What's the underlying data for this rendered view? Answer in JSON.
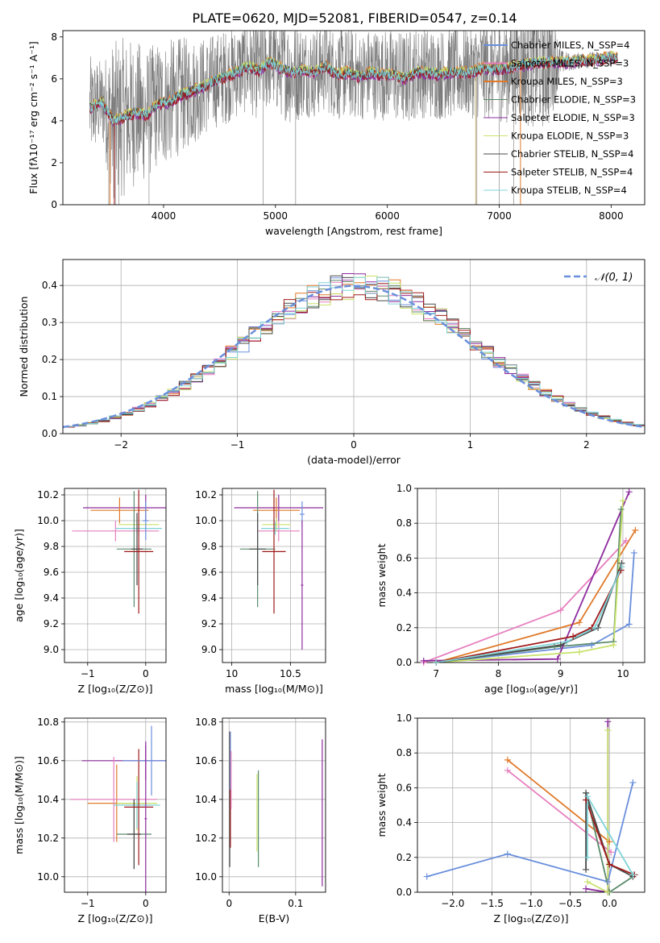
{
  "figure": {
    "title": "PLATE=0620, MJD=52081, FIBERID=0547, z=0.14"
  },
  "colors": {
    "blue": "#6a8fdc",
    "orange": "#e07a2a",
    "green": "#5a8a6a",
    "purple": "#8e2c9e",
    "yellowgreen": "#c8e26a",
    "darkgray": "#4a4a4a",
    "darkred": "#a01a1a",
    "cyan": "#7fd4d8",
    "pink": "#e77fbf",
    "gray": "#808080"
  },
  "chart_data": [
    {
      "id": "spectrum",
      "type": "line",
      "xlabel": "wavelength [Angstrom, rest frame]",
      "ylabel": "Flux [fλ10⁻¹⁷ erg cm⁻² s⁻¹ A⁻¹]",
      "xlim": [
        3100,
        8300
      ],
      "ylim": [
        0,
        8.3
      ],
      "xticks": [
        4000,
        5000,
        6000,
        7000,
        8000
      ],
      "yticks": [
        0,
        2,
        4,
        6,
        8
      ],
      "grid": false,
      "legend_position": "upper-right",
      "data_series": {
        "name": "",
        "x": [
          3340,
          3450,
          3550,
          3650,
          3750,
          3850,
          3950,
          4050,
          4150,
          4250,
          4350,
          4450,
          4550,
          4650,
          4750,
          4850,
          4950,
          5050,
          5150,
          5250,
          5350,
          5450,
          5550,
          5650,
          5750,
          5850,
          5950,
          6050,
          6150,
          6250,
          6350,
          6450,
          6550,
          6650,
          6750,
          6850,
          6950,
          7050,
          7150,
          7250,
          7350,
          7450,
          7550,
          7650,
          7750,
          7850,
          7950,
          8050
        ],
        "y": [
          4.6,
          4.9,
          4.0,
          4.2,
          4.4,
          4.3,
          4.8,
          4.9,
          5.2,
          5.4,
          5.6,
          5.9,
          6.1,
          6.3,
          6.6,
          6.4,
          6.8,
          6.5,
          6.3,
          6.4,
          6.3,
          6.6,
          6.2,
          6.3,
          6.1,
          6.3,
          6.2,
          6.2,
          6.0,
          6.3,
          6.3,
          6.2,
          6.3,
          6.3,
          6.3,
          6.5,
          6.5,
          6.5,
          6.6,
          6.7,
          6.8,
          6.8,
          6.8,
          6.8,
          6.9,
          6.9,
          7.0,
          7.0
        ],
        "noise": [
          2.5,
          2.0,
          3.8,
          3.8,
          3.5,
          3.2,
          3.0,
          3.0,
          2.8,
          2.6,
          2.4,
          2.3,
          2.3,
          2.2,
          2.2,
          2.4,
          2.2,
          2.3,
          2.6,
          2.2,
          2.2,
          2.2,
          2.2,
          2.2,
          2.1,
          2.2,
          2.2,
          2.2,
          2.3,
          2.2,
          2.2,
          2.2,
          2.2,
          2.2,
          2.2,
          2.4,
          2.5,
          2.6,
          2.8,
          3.0,
          3.2,
          3.2,
          0.6,
          0.4,
          0.4,
          0.4,
          0.4,
          0.3
        ]
      },
      "series": [
        {
          "name": "Chabrier MILES, N_SSP=4",
          "color": "#6a8fdc",
          "offset": 0.05
        },
        {
          "name": "Salpeter MILES, N_SSP=3",
          "color": "#e77fbf",
          "offset": -0.05
        },
        {
          "name": "Kroupa MILES, N_SSP=3",
          "color": "#e07a2a",
          "offset": 0.1
        },
        {
          "name": "Chabrier ELODIE, N_SSP=3",
          "color": "#5a8a6a",
          "offset": 0.0
        },
        {
          "name": "Salpeter ELODIE, N_SSP=3",
          "color": "#8e2c9e",
          "offset": -0.1
        },
        {
          "name": "Kroupa ELODIE, N_SSP=3",
          "color": "#c8e26a",
          "offset": 0.08
        },
        {
          "name": "Chabrier STELIB, N_SSP=4",
          "color": "#4a4a4a",
          "offset": 0.02
        },
        {
          "name": "Salpeter STELIB, N_SSP=4",
          "color": "#a01a1a",
          "offset": -0.08
        },
        {
          "name": "Kroupa STELIB, N_SSP=4",
          "color": "#7fd4d8",
          "offset": 0.0
        }
      ]
    },
    {
      "id": "residuals",
      "type": "line",
      "xlabel": "(data-model)/error",
      "ylabel": "Normed distribution",
      "xlim": [
        -2.5,
        2.5
      ],
      "ylim": [
        0,
        0.47
      ],
      "xticks": [
        -2,
        -1,
        0,
        1,
        2
      ],
      "yticks": [
        0.0,
        0.1,
        0.2,
        0.3,
        0.4
      ],
      "grid": true,
      "legend_position": "upper-right",
      "gaussian_label": "𝒩(0, 1)",
      "gaussian_color": "#6a8fdc",
      "histogram_bin_width": 0.1,
      "histogram_colors": [
        "#6a8fdc",
        "#e77fbf",
        "#e07a2a",
        "#5a8a6a",
        "#8e2c9e",
        "#c8e26a",
        "#4a4a4a",
        "#a01a1a",
        "#7fd4d8"
      ]
    },
    {
      "id": "age-vs-Z",
      "type": "scatter",
      "xlabel": "Z [log₁₀(Z/Z⊙)]",
      "ylabel": "age  [log₁₀(age/yr)]",
      "xlim": [
        -1.4,
        0.35
      ],
      "ylim": [
        8.9,
        10.25
      ],
      "xticks": [
        -1,
        0
      ],
      "yticks": [
        9.0,
        9.2,
        9.4,
        9.6,
        9.8,
        10.0,
        10.2
      ],
      "grid": true,
      "errorbars": [
        {
          "x": 0.0,
          "y": 10.1,
          "xerr": 1.08,
          "yerr": 0.1,
          "color": "#8e2c9e"
        },
        {
          "x": -0.45,
          "y": 10.08,
          "xerr": 0.5,
          "yerr": 0.1,
          "color": "#e07a2a"
        },
        {
          "x": -0.52,
          "y": 9.92,
          "xerr": 0.75,
          "yerr": 0.08,
          "color": "#e77fbf"
        },
        {
          "x": -0.12,
          "y": 9.97,
          "xerr": 0.35,
          "yerr": 0.05,
          "color": "#c8e26a"
        },
        {
          "x": -0.12,
          "y": 9.94,
          "xerr": 0.4,
          "yerr": 0.05,
          "color": "#7fd4d8"
        },
        {
          "x": -0.2,
          "y": 9.78,
          "xerr": 0.3,
          "yerr": 0.45,
          "color": "#5a8a6a"
        },
        {
          "x": -0.15,
          "y": 9.78,
          "xerr": 0.1,
          "yerr": 0.28,
          "color": "#4a4a4a"
        },
        {
          "x": -0.12,
          "y": 9.76,
          "xerr": 0.25,
          "yerr": 0.48,
          "color": "#a01a1a"
        },
        {
          "x": 0.0,
          "y": 10.0,
          "xerr": 0.05,
          "yerr": 0.15,
          "color": "#6a8fdc"
        }
      ]
    },
    {
      "id": "age-vs-mass",
      "type": "scatter",
      "xlabel": "mass [log₁₀(M/M⊙)]",
      "ylabel": "",
      "xlim": [
        9.92,
        10.8
      ],
      "ylim": [
        8.9,
        10.25
      ],
      "xticks": [
        10.0,
        10.5
      ],
      "yticks": [
        9.0,
        9.2,
        9.4,
        9.6,
        9.8,
        10.0,
        10.2
      ],
      "grid": true,
      "errorbars": [
        {
          "x": 10.4,
          "y": 10.1,
          "xerr": 0.38,
          "yerr": 0.1,
          "color": "#8e2c9e"
        },
        {
          "x": 10.38,
          "y": 10.08,
          "xerr": 0.2,
          "yerr": 0.1,
          "color": "#e07a2a"
        },
        {
          "x": 10.4,
          "y": 9.92,
          "xerr": 0.18,
          "yerr": 0.08,
          "color": "#e77fbf"
        },
        {
          "x": 10.38,
          "y": 9.97,
          "xerr": 0.12,
          "yerr": 0.05,
          "color": "#c8e26a"
        },
        {
          "x": 10.37,
          "y": 9.94,
          "xerr": 0.12,
          "yerr": 0.05,
          "color": "#7fd4d8"
        },
        {
          "x": 10.22,
          "y": 9.78,
          "xerr": 0.15,
          "yerr": 0.45,
          "color": "#5a8a6a"
        },
        {
          "x": 10.22,
          "y": 9.78,
          "xerr": 0.07,
          "yerr": 0.28,
          "color": "#4a4a4a"
        },
        {
          "x": 10.36,
          "y": 9.76,
          "xerr": 0.1,
          "yerr": 0.48,
          "color": "#a01a1a"
        },
        {
          "x": 10.6,
          "y": 10.05,
          "xerr": 0.02,
          "yerr": 0.1,
          "color": "#6a8fdc"
        },
        {
          "x": 10.6,
          "y": 9.5,
          "xerr": 0.01,
          "yerr": 0.5,
          "color": "#8e2c9e"
        }
      ]
    },
    {
      "id": "mass-weight-vs-age",
      "type": "line",
      "xlabel": "age  [log₁₀(age/yr)]",
      "ylabel": "mass weight",
      "xlim": [
        6.7,
        10.35
      ],
      "ylim": [
        0,
        1
      ],
      "xticks": [
        7,
        8,
        9,
        10
      ],
      "yticks": [
        0.0,
        0.2,
        0.4,
        0.6,
        0.8,
        1.0
      ],
      "grid": true,
      "lines": [
        {
          "color": "#6a8fdc",
          "x": [
            7.0,
            9.5,
            10.1,
            10.18
          ],
          "y": [
            0.0,
            0.1,
            0.22,
            0.63
          ]
        },
        {
          "color": "#e77fbf",
          "x": [
            6.8,
            9.0,
            10.05
          ],
          "y": [
            0.0,
            0.3,
            0.7
          ]
        },
        {
          "color": "#e07a2a",
          "x": [
            7.0,
            9.3,
            10.2
          ],
          "y": [
            0.0,
            0.23,
            0.76
          ]
        },
        {
          "color": "#5a8a6a",
          "x": [
            7.0,
            8.9,
            9.85,
            9.97
          ],
          "y": [
            0.0,
            0.09,
            0.12,
            0.88
          ]
        },
        {
          "color": "#8e2c9e",
          "x": [
            6.8,
            8.95,
            10.1
          ],
          "y": [
            0.01,
            0.02,
            0.98
          ]
        },
        {
          "color": "#c8e26a",
          "x": [
            7.0,
            9.3,
            9.85,
            10.0
          ],
          "y": [
            0.0,
            0.06,
            0.1,
            0.93
          ]
        },
        {
          "color": "#4a4a4a",
          "x": [
            7.0,
            9.0,
            9.6,
            9.98
          ],
          "y": [
            0.0,
            0.1,
            0.2,
            0.57
          ]
        },
        {
          "color": "#a01a1a",
          "x": [
            7.0,
            9.2,
            9.5,
            9.97
          ],
          "y": [
            0.0,
            0.15,
            0.2,
            0.53
          ]
        },
        {
          "color": "#7fd4d8",
          "x": [
            7.0,
            9.1,
            9.55,
            9.98
          ],
          "y": [
            0.0,
            0.12,
            0.2,
            0.55
          ]
        }
      ]
    },
    {
      "id": "mass-vs-Z",
      "type": "scatter",
      "xlabel": "Z [log₁₀(Z/Z⊙)]",
      "ylabel": "mass [log₁₀(M/M⊙)]",
      "xlim": [
        -1.4,
        0.35
      ],
      "ylim": [
        9.92,
        10.82
      ],
      "xticks": [
        -1,
        0
      ],
      "yticks": [
        10.0,
        10.2,
        10.4,
        10.6,
        10.8
      ],
      "grid": true,
      "errorbars": [
        {
          "x": 0.0,
          "y": 10.6,
          "xerr": 1.1,
          "yerr": 0.1,
          "color": "#8e2c9e"
        },
        {
          "x": -0.5,
          "y": 10.38,
          "xerr": 0.5,
          "yerr": 0.2,
          "color": "#e07a2a"
        },
        {
          "x": -0.55,
          "y": 10.4,
          "xerr": 0.75,
          "yerr": 0.22,
          "color": "#e77fbf"
        },
        {
          "x": -0.15,
          "y": 10.38,
          "xerr": 0.35,
          "yerr": 0.14,
          "color": "#c8e26a"
        },
        {
          "x": -0.15,
          "y": 10.37,
          "xerr": 0.4,
          "yerr": 0.12,
          "color": "#7fd4d8"
        },
        {
          "x": -0.2,
          "y": 10.22,
          "xerr": 0.3,
          "yerr": 0.18,
          "color": "#5a8a6a"
        },
        {
          "x": -0.2,
          "y": 10.22,
          "xerr": 0.12,
          "yerr": 0.18,
          "color": "#4a4a4a"
        },
        {
          "x": -0.12,
          "y": 10.36,
          "xerr": 0.25,
          "yerr": 0.3,
          "color": "#a01a1a"
        },
        {
          "x": 0.1,
          "y": 10.6,
          "xerr": 0.5,
          "yerr": 0.18,
          "color": "#6a8fdc"
        },
        {
          "x": 0.0,
          "y": 10.3,
          "xerr": 0.02,
          "yerr": 0.38,
          "color": "#8e2c9e"
        }
      ]
    },
    {
      "id": "mass-vs-EBV",
      "type": "scatter",
      "xlabel": "E(B-V)",
      "ylabel": "",
      "xlim": [
        -0.01,
        0.145
      ],
      "ylim": [
        9.92,
        10.82
      ],
      "xticks": [
        0.0,
        0.1
      ],
      "yticks": [
        10.0,
        10.2,
        10.4,
        10.6,
        10.8
      ],
      "grid": true,
      "errorbars": [
        {
          "x": 0.001,
          "y": 10.4,
          "xerr": 0,
          "yerr": 0.35,
          "color": "#4a4a4a"
        },
        {
          "x": 0.002,
          "y": 10.45,
          "xerr": 0,
          "yerr": 0.3,
          "color": "#a01a1a"
        },
        {
          "x": 0.002,
          "y": 10.6,
          "xerr": 0,
          "yerr": 0.15,
          "color": "#6a8fdc"
        },
        {
          "x": 0.003,
          "y": 10.5,
          "xerr": 0,
          "yerr": 0.15,
          "color": "#e77fbf"
        },
        {
          "x": 0.042,
          "y": 10.33,
          "xerr": 0,
          "yerr": 0.2,
          "color": "#c8e26a"
        },
        {
          "x": 0.044,
          "y": 10.3,
          "xerr": 0,
          "yerr": 0.25,
          "color": "#5a8a6a"
        },
        {
          "x": 0.14,
          "y": 10.33,
          "xerr": 0,
          "yerr": 0.38,
          "color": "#8e2c9e"
        }
      ]
    },
    {
      "id": "mass-weight-vs-Z",
      "type": "line",
      "xlabel": "Z [log₁₀(Z/Z⊙)]",
      "ylabel": "mass weight",
      "xlim": [
        -2.45,
        0.45
      ],
      "ylim": [
        0,
        1
      ],
      "xticks": [
        -2.0,
        -1.5,
        -1.0,
        -0.5,
        0.0
      ],
      "xtick_labels": [
        "−2.0",
        "−1.5",
        "−1.0",
        "−0.5",
        "0.0"
      ],
      "yticks": [
        0.0,
        0.2,
        0.4,
        0.6,
        0.8,
        1.0
      ],
      "grid": true,
      "lines": [
        {
          "color": "#6a8fdc",
          "x": [
            -2.33,
            -1.3,
            -0.02,
            0.3
          ],
          "y": [
            0.09,
            0.22,
            0.06,
            0.63
          ]
        },
        {
          "color": "#e77fbf",
          "x": [
            -1.3,
            0.02
          ],
          "y": [
            0.7,
            0.23
          ]
        },
        {
          "color": "#e07a2a",
          "x": [
            -1.3,
            0.0
          ],
          "y": [
            0.76,
            0.29
          ]
        },
        {
          "color": "#5a8a6a",
          "x": [
            -0.3,
            0.0,
            0.3
          ],
          "y": [
            0.57,
            0.0,
            0.09
          ]
        },
        {
          "color": "#8e2c9e",
          "x": [
            -0.3,
            -0.02,
            -0.02
          ],
          "y": [
            0.02,
            0.0,
            0.98
          ]
        },
        {
          "color": "#c8e26a",
          "x": [
            -0.28,
            -0.02,
            -0.02
          ],
          "y": [
            0.06,
            0.0,
            0.93
          ]
        },
        {
          "color": "#4a4a4a",
          "x": [
            -0.3,
            -0.3,
            0.0,
            0.3
          ],
          "y": [
            0.13,
            0.57,
            0.16,
            0.09
          ]
        },
        {
          "color": "#a01a1a",
          "x": [
            -0.3,
            0.0,
            0.32
          ],
          "y": [
            0.53,
            0.16,
            0.1
          ]
        },
        {
          "color": "#7fd4d8",
          "x": [
            -0.28,
            -0.28,
            0.3
          ],
          "y": [
            0.2,
            0.55,
            0.1
          ]
        }
      ]
    }
  ]
}
